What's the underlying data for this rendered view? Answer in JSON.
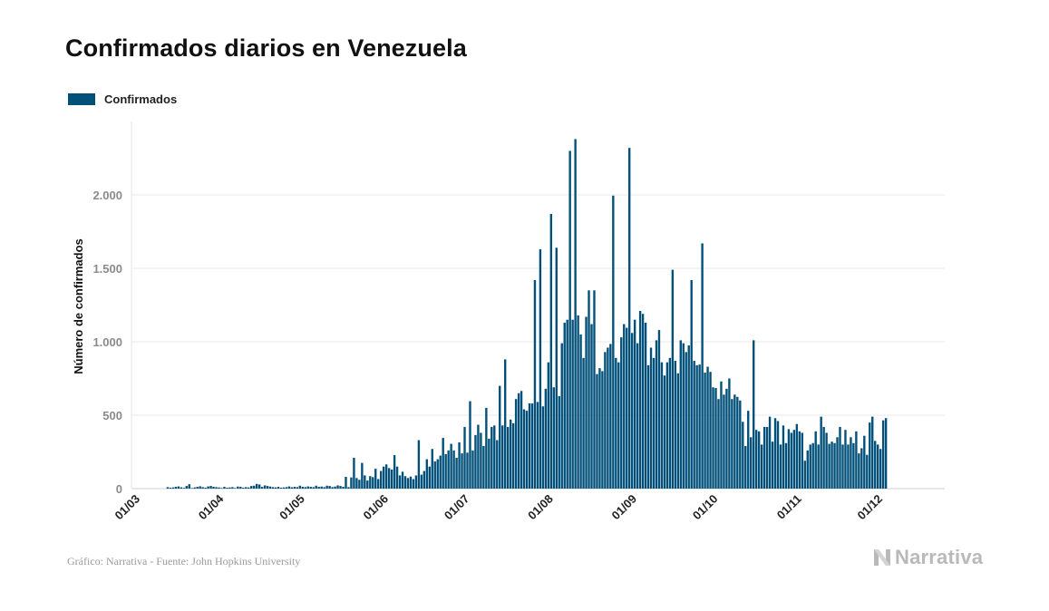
{
  "title": "Confirmados diarios en Venezuela",
  "legend": {
    "label": "Confirmados",
    "color": "#00507a"
  },
  "footer": {
    "source": "Gráfico: Narrativa - Fuente: John Hopkins University",
    "brand": "Narrativa"
  },
  "chart_data": {
    "type": "bar",
    "title": "Confirmados diarios en Venezuela",
    "xlabel": "",
    "ylabel": "Número de confirmados",
    "ylim": [
      0,
      2500
    ],
    "yticks": [
      0,
      500,
      1000,
      1500,
      2000
    ],
    "ytick_labels": [
      "0",
      "500",
      "1.000",
      "1.500",
      "2.000"
    ],
    "xtick_labels": [
      "01/03",
      "01/04",
      "01/05",
      "01/06",
      "01/07",
      "01/08",
      "01/09",
      "01/10",
      "01/11",
      "01/12"
    ],
    "grid": true,
    "legend_position": "top-left",
    "series": [
      {
        "name": "Confirmados",
        "color": "#00507a",
        "start_date": "2020-03-14",
        "values": [
          10,
          6,
          8,
          12,
          15,
          9,
          5,
          18,
          30,
          4,
          8,
          12,
          16,
          10,
          6,
          15,
          18,
          12,
          10,
          8,
          4,
          12,
          6,
          8,
          10,
          4,
          14,
          12,
          6,
          10,
          8,
          18,
          20,
          32,
          28,
          12,
          22,
          18,
          14,
          10,
          8,
          12,
          6,
          8,
          10,
          15,
          9,
          12,
          10,
          20,
          12,
          10,
          15,
          12,
          10,
          20,
          12,
          14,
          10,
          20,
          18,
          10,
          14,
          22,
          18,
          12,
          80,
          10,
          76,
          210,
          72,
          60,
          175,
          90,
          55,
          85,
          78,
          135,
          65,
          120,
          150,
          165,
          140,
          130,
          228,
          150,
          90,
          115,
          85,
          72,
          82,
          65,
          90,
          330,
          95,
          120,
          200,
          150,
          270,
          185,
          200,
          225,
          345,
          235,
          260,
          305,
          260,
          210,
          315,
          240,
          420,
          245,
          595,
          260,
          365,
          435,
          380,
          290,
          550,
          340,
          420,
          430,
          330,
          700,
          430,
          880,
          420,
          470,
          445,
          610,
          650,
          665,
          540,
          530,
          580,
          580,
          1420,
          590,
          1630,
          560,
          680,
          860,
          1870,
          690,
          1640,
          630,
          990,
          1130,
          1150,
          2300,
          1150,
          2380,
          1180,
          1050,
          890,
          1170,
          1350,
          1120,
          1350,
          780,
          820,
          800,
          930,
          960,
          985,
          1995,
          890,
          860,
          1030,
          1120,
          1095,
          2320,
          1060,
          1150,
          990,
          1210,
          1190,
          1130,
          840,
          960,
          890,
          1010,
          1080,
          860,
          770,
          860,
          890,
          1490,
          870,
          785,
          1010,
          990,
          930,
          975,
          1420,
          870,
          840,
          845,
          1670,
          790,
          830,
          795,
          690,
          685,
          610,
          730,
          640,
          680,
          750,
          610,
          640,
          625,
          600,
          455,
          290,
          530,
          350,
          1010,
          400,
          390,
          300,
          420,
          420,
          490,
          320,
          480,
          460,
          300,
          430,
          310,
          405,
          380,
          400,
          440,
          390,
          380,
          190,
          260,
          300,
          310,
          390,
          300,
          490,
          420,
          380,
          305,
          320,
          310,
          350,
          420,
          300,
          400,
          300,
          350,
          310,
          390,
          240,
          275,
          360,
          230,
          450,
          490,
          325,
          300,
          270,
          465,
          480
        ]
      }
    ]
  }
}
